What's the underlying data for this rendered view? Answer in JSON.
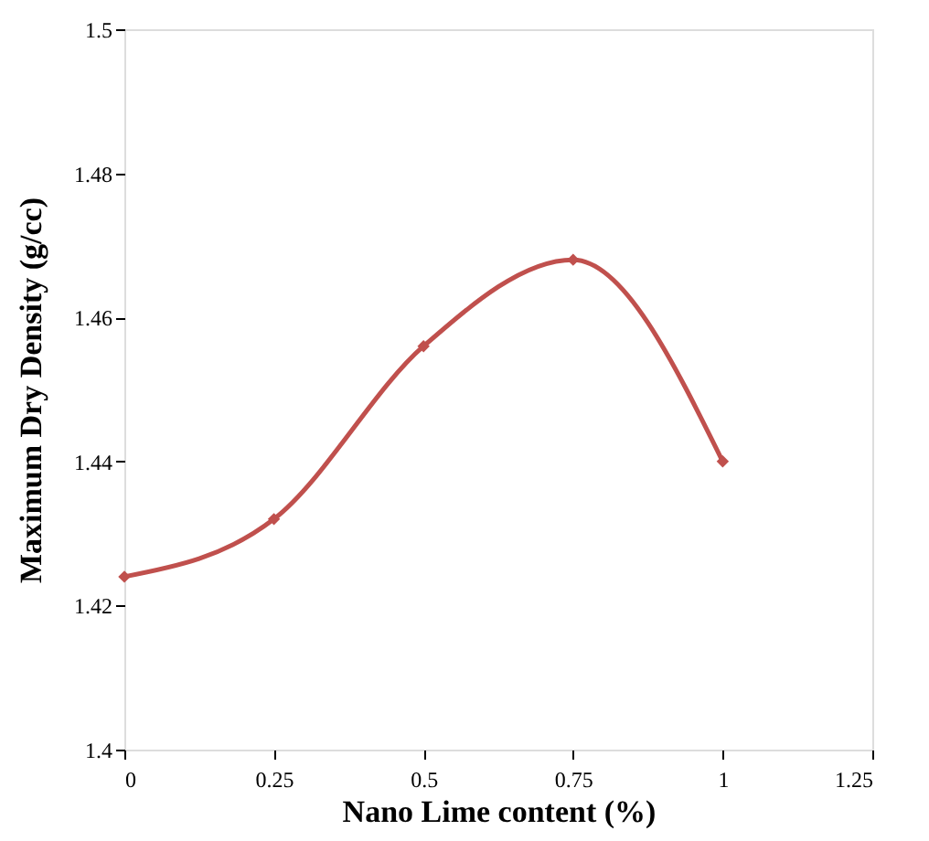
{
  "chart_data": {
    "type": "line",
    "xlabel": "Nano Lime content (%)",
    "ylabel": "Maximum  Dry Density (g/cc)",
    "x": [
      0,
      0.25,
      0.5,
      0.75,
      1
    ],
    "series": [
      {
        "color": "#c0504d",
        "values": [
          1.424,
          1.432,
          1.456,
          1.468,
          1.44
        ]
      }
    ],
    "xlim": [
      0,
      1.25
    ],
    "xticks": [
      0,
      0.25,
      0.5,
      0.75,
      1,
      1.25
    ],
    "ylim": [
      1.4,
      1.5
    ],
    "yticks": [
      1.4,
      1.42,
      1.44,
      1.46,
      1.48,
      1.5
    ],
    "marker": "diamond",
    "line_style": "solid",
    "grid": false
  }
}
